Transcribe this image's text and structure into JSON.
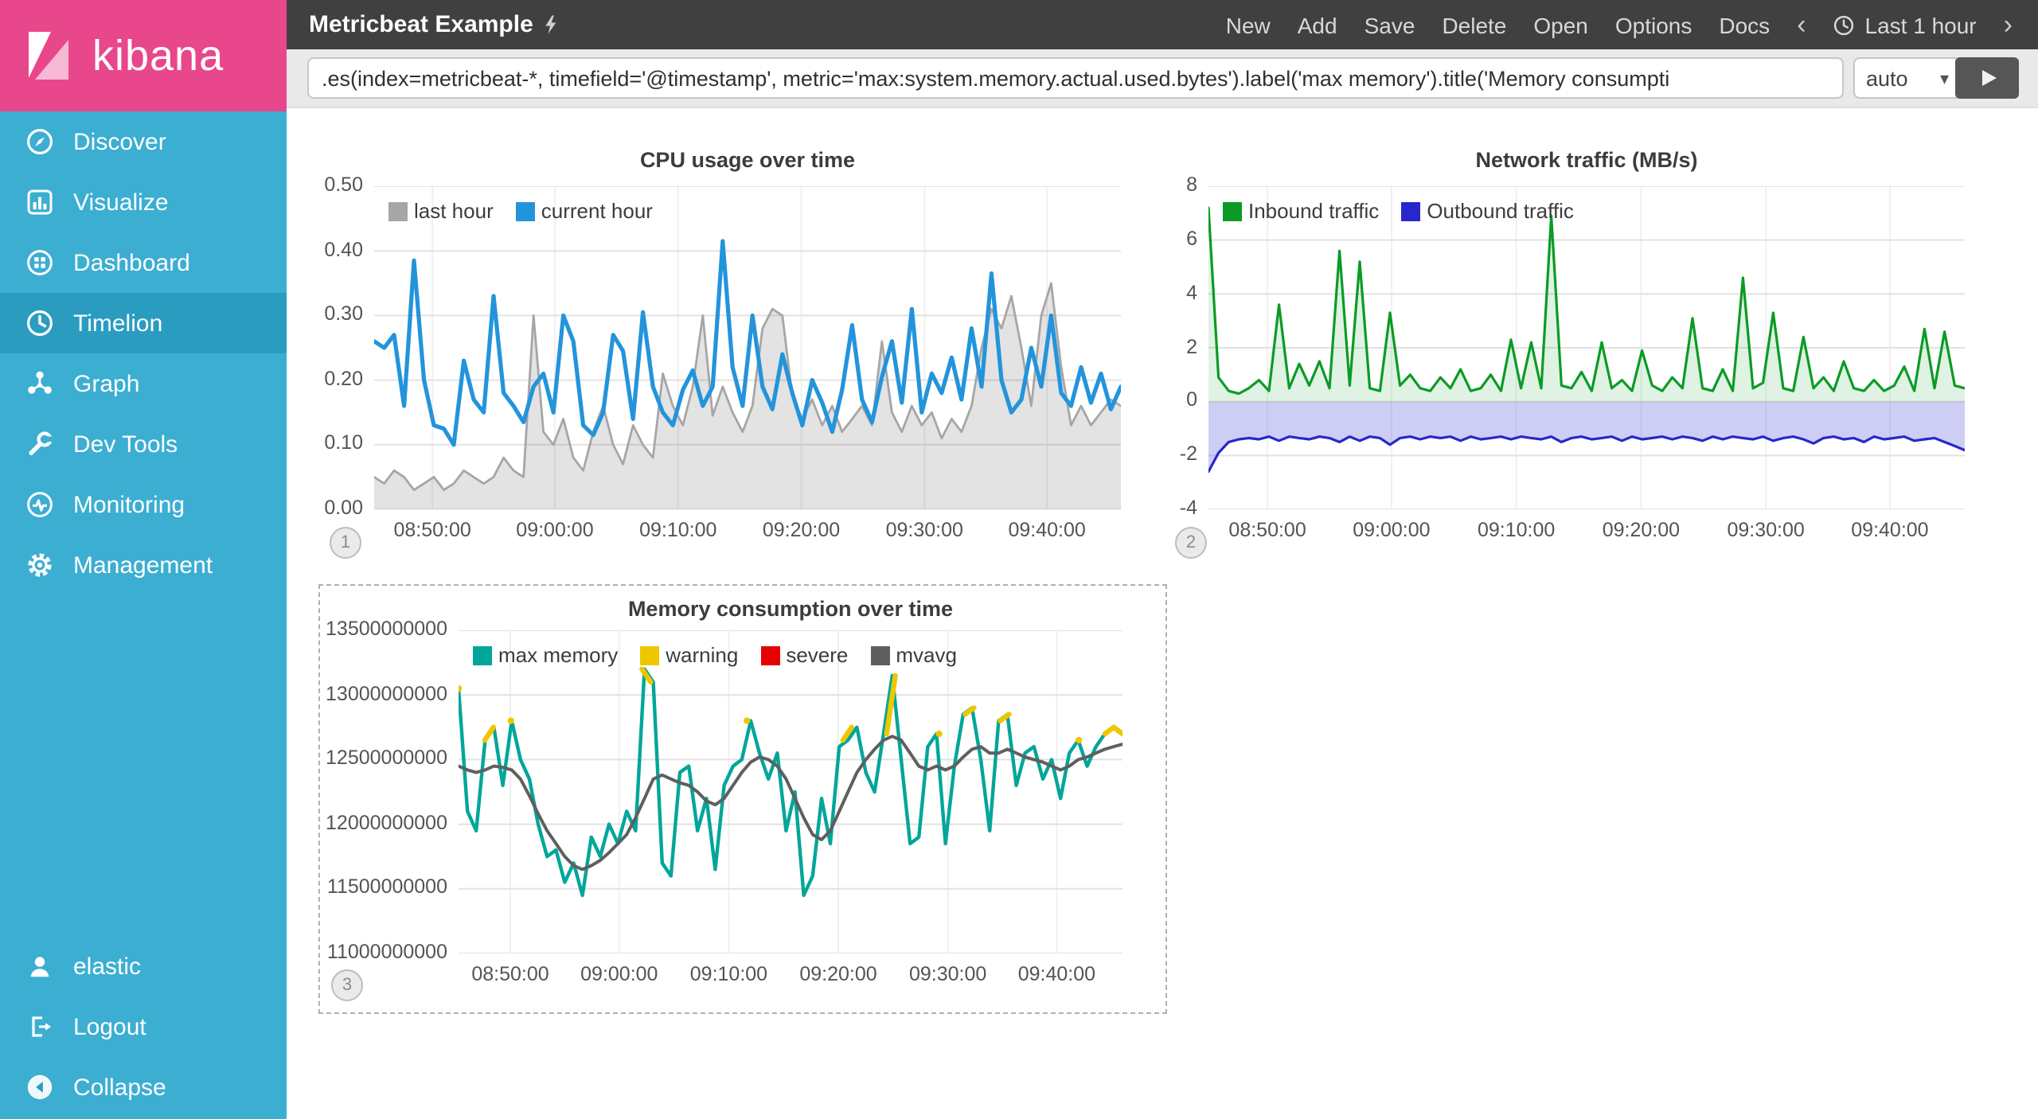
{
  "sidebar": {
    "logo_text": "kibana",
    "items": [
      {
        "label": "Discover",
        "icon": "compass-icon",
        "active": false
      },
      {
        "label": "Visualize",
        "icon": "bar-chart-icon",
        "active": false
      },
      {
        "label": "Dashboard",
        "icon": "dashboard-icon",
        "active": false
      },
      {
        "label": "Timelion",
        "icon": "clock-icon",
        "active": true
      },
      {
        "label": "Graph",
        "icon": "graph-icon",
        "active": false
      },
      {
        "label": "Dev Tools",
        "icon": "wrench-icon",
        "active": false
      },
      {
        "label": "Monitoring",
        "icon": "pulse-icon",
        "active": false
      },
      {
        "label": "Management",
        "icon": "gear-icon",
        "active": false
      }
    ],
    "bottom_items": [
      {
        "label": "elastic",
        "icon": "user-icon"
      },
      {
        "label": "Logout",
        "icon": "logout-icon"
      },
      {
        "label": "Collapse",
        "icon": "collapse-icon"
      }
    ]
  },
  "topbar": {
    "title": "Metricbeat Example",
    "title_icon": "lightning-bolt-icon",
    "menu": [
      "New",
      "Add",
      "Save",
      "Delete",
      "Open",
      "Options",
      "Docs"
    ],
    "prev_symbol": "‹",
    "next_symbol": "›",
    "time_label": "Last 1 hour"
  },
  "querybar": {
    "expression": ".es(index=metricbeat-*, timefield='@timestamp', metric='max:system.memory.actual.used.bytes').label('max memory').title('Memory consumpti",
    "interval": "auto",
    "caret_symbol": "▾"
  },
  "colors": {
    "brand_pink": "#e8478b",
    "sidebar_teal": "#3caed2",
    "sidebar_active": "#2a9cc0",
    "topbar_gray": "#404040",
    "cpu_last_hour": "#a6a6a6",
    "cpu_current_hour": "#2394dc",
    "inbound_green": "#0b9b25",
    "outbound_blue": "#2727cc",
    "max_memory_teal": "#00a69a",
    "warning_yellow": "#efc700",
    "severe_red": "#e60000",
    "mvavg_gray": "#5f5f5f"
  },
  "chart_data": [
    {
      "type": "line",
      "title": "CPU usage over time",
      "badge": "1",
      "selected": false,
      "x_start": "08:46:00",
      "x_end": "09:43:00",
      "ylim": [
        0,
        0.5
      ],
      "grid": true,
      "legend_position": "top-left-inside",
      "y_ticks": [
        {
          "v": 0,
          "label": "0.00"
        },
        {
          "v": 0.1,
          "label": "0.10"
        },
        {
          "v": 0.2,
          "label": "0.20"
        },
        {
          "v": 0.3,
          "label": "0.30"
        },
        {
          "v": 0.4,
          "label": "0.40"
        },
        {
          "v": 0.5,
          "label": "0.50"
        }
      ],
      "x_ticks": [
        {
          "pos": 0.078,
          "label": "08:50:00"
        },
        {
          "pos": 0.242,
          "label": "09:00:00"
        },
        {
          "pos": 0.407,
          "label": "09:10:00"
        },
        {
          "pos": 0.572,
          "label": "09:20:00"
        },
        {
          "pos": 0.737,
          "label": "09:30:00"
        },
        {
          "pos": 0.901,
          "label": "09:40:00"
        }
      ],
      "series": [
        {
          "name": "last hour",
          "color": "#a6a6a6",
          "width": 1.4,
          "fill": "rgba(0,0,0,0.11)",
          "fill_to": 0,
          "values": [
            0.05,
            0.04,
            0.06,
            0.05,
            0.03,
            0.04,
            0.05,
            0.03,
            0.04,
            0.06,
            0.05,
            0.04,
            0.05,
            0.08,
            0.06,
            0.05,
            0.3,
            0.12,
            0.1,
            0.14,
            0.08,
            0.06,
            0.12,
            0.16,
            0.1,
            0.07,
            0.13,
            0.1,
            0.08,
            0.21,
            0.16,
            0.13,
            0.19,
            0.3,
            0.145,
            0.19,
            0.15,
            0.12,
            0.16,
            0.28,
            0.31,
            0.3,
            0.175,
            0.14,
            0.17,
            0.13,
            0.16,
            0.12,
            0.14,
            0.16,
            0.13,
            0.26,
            0.15,
            0.12,
            0.16,
            0.13,
            0.15,
            0.11,
            0.14,
            0.12,
            0.16,
            0.25,
            0.31,
            0.28,
            0.33,
            0.25,
            0.16,
            0.3,
            0.35,
            0.22,
            0.13,
            0.16,
            0.13,
            0.15,
            0.17,
            0.16
          ]
        },
        {
          "name": "current hour",
          "color": "#2394dc",
          "width": 2.6,
          "values": [
            0.26,
            0.25,
            0.27,
            0.16,
            0.385,
            0.2,
            0.13,
            0.125,
            0.1,
            0.23,
            0.17,
            0.15,
            0.33,
            0.18,
            0.16,
            0.135,
            0.19,
            0.21,
            0.15,
            0.3,
            0.26,
            0.13,
            0.115,
            0.15,
            0.27,
            0.245,
            0.14,
            0.305,
            0.19,
            0.15,
            0.13,
            0.185,
            0.215,
            0.16,
            0.19,
            0.415,
            0.22,
            0.16,
            0.3,
            0.19,
            0.155,
            0.24,
            0.18,
            0.13,
            0.2,
            0.165,
            0.12,
            0.185,
            0.285,
            0.17,
            0.135,
            0.205,
            0.26,
            0.165,
            0.31,
            0.15,
            0.21,
            0.18,
            0.235,
            0.17,
            0.28,
            0.19,
            0.365,
            0.2,
            0.15,
            0.17,
            0.25,
            0.19,
            0.3,
            0.18,
            0.16,
            0.22,
            0.165,
            0.21,
            0.155,
            0.19
          ]
        }
      ]
    },
    {
      "type": "area",
      "title": "Network traffic (MB/s)",
      "badge": "2",
      "selected": false,
      "x_start": "08:46:00",
      "x_end": "09:43:00",
      "ylim": [
        -4,
        8
      ],
      "grid": true,
      "legend_position": "top-left-inside",
      "y_ticks": [
        {
          "v": -4,
          "label": "-4"
        },
        {
          "v": -2,
          "label": "-2"
        },
        {
          "v": 0,
          "label": "0"
        },
        {
          "v": 2,
          "label": "2"
        },
        {
          "v": 4,
          "label": "4"
        },
        {
          "v": 6,
          "label": "6"
        },
        {
          "v": 8,
          "label": "8"
        }
      ],
      "x_ticks": [
        {
          "pos": 0.078,
          "label": "08:50:00"
        },
        {
          "pos": 0.242,
          "label": "09:00:00"
        },
        {
          "pos": 0.407,
          "label": "09:10:00"
        },
        {
          "pos": 0.572,
          "label": "09:20:00"
        },
        {
          "pos": 0.737,
          "label": "09:30:00"
        },
        {
          "pos": 0.901,
          "label": "09:40:00"
        }
      ],
      "series": [
        {
          "name": "Inbound traffic",
          "color": "#0b9b25",
          "width": 1.6,
          "fill": "rgba(11,155,37,0.13)",
          "fill_to": 0,
          "values": [
            7.2,
            0.9,
            0.4,
            0.3,
            0.5,
            0.8,
            0.4,
            3.6,
            0.5,
            1.4,
            0.6,
            1.5,
            0.5,
            5.6,
            0.6,
            5.2,
            0.5,
            0.4,
            3.3,
            0.6,
            1.0,
            0.5,
            0.4,
            0.9,
            0.5,
            1.2,
            0.4,
            0.5,
            1.0,
            0.4,
            2.3,
            0.5,
            2.2,
            0.5,
            6.9,
            0.6,
            0.5,
            1.1,
            0.4,
            2.2,
            0.5,
            0.8,
            0.4,
            1.9,
            0.6,
            0.4,
            0.9,
            0.5,
            3.1,
            0.5,
            0.4,
            1.2,
            0.4,
            4.6,
            0.5,
            0.7,
            3.3,
            0.5,
            0.4,
            2.4,
            0.5,
            0.9,
            0.4,
            1.5,
            0.5,
            0.4,
            0.8,
            0.4,
            0.6,
            1.3,
            0.4,
            2.7,
            0.5,
            2.6,
            0.6,
            0.5
          ]
        },
        {
          "name": "Outbound traffic",
          "color": "#2727cc",
          "width": 1.6,
          "fill": "rgba(80,80,215,0.28)",
          "fill_to": 0,
          "values": [
            -2.6,
            -1.9,
            -1.5,
            -1.4,
            -1.35,
            -1.4,
            -1.3,
            -1.45,
            -1.3,
            -1.35,
            -1.4,
            -1.3,
            -1.35,
            -1.5,
            -1.3,
            -1.45,
            -1.3,
            -1.35,
            -1.6,
            -1.35,
            -1.3,
            -1.4,
            -1.3,
            -1.35,
            -1.3,
            -1.45,
            -1.3,
            -1.4,
            -1.35,
            -1.3,
            -1.4,
            -1.3,
            -1.35,
            -1.4,
            -1.3,
            -1.5,
            -1.35,
            -1.3,
            -1.4,
            -1.35,
            -1.3,
            -1.45,
            -1.3,
            -1.4,
            -1.35,
            -1.3,
            -1.4,
            -1.3,
            -1.35,
            -1.45,
            -1.3,
            -1.4,
            -1.3,
            -1.35,
            -1.4,
            -1.3,
            -1.45,
            -1.35,
            -1.3,
            -1.4,
            -1.55,
            -1.35,
            -1.3,
            -1.4,
            -1.35,
            -1.5,
            -1.3,
            -1.4,
            -1.35,
            -1.3,
            -1.45,
            -1.4,
            -1.35,
            -1.5,
            -1.65,
            -1.8
          ]
        }
      ]
    },
    {
      "type": "line",
      "title": "Memory consumption over time",
      "badge": "3",
      "selected": true,
      "x_start": "08:46:00",
      "x_end": "09:43:00",
      "y_unit_multiplier": 1000000000,
      "warning_threshold": 12.65,
      "ylim": [
        11,
        13.5
      ],
      "grid": true,
      "legend_position": "top-left-inside",
      "y_ticks": [
        {
          "v": 11,
          "label": "11000000000"
        },
        {
          "v": 11.5,
          "label": "11500000000"
        },
        {
          "v": 12,
          "label": "12000000000"
        },
        {
          "v": 12.5,
          "label": "12500000000"
        },
        {
          "v": 13,
          "label": "13000000000"
        },
        {
          "v": 13.5,
          "label": "13500000000"
        }
      ],
      "x_ticks": [
        {
          "pos": 0.078,
          "label": "08:50:00"
        },
        {
          "pos": 0.242,
          "label": "09:00:00"
        },
        {
          "pos": 0.407,
          "label": "09:10:00"
        },
        {
          "pos": 0.572,
          "label": "09:20:00"
        },
        {
          "pos": 0.737,
          "label": "09:30:00"
        },
        {
          "pos": 0.901,
          "label": "09:40:00"
        }
      ],
      "series": [
        {
          "name": "max memory",
          "color": "#00a69a",
          "width": 2.2,
          "values": [
            13.05,
            12.1,
            11.95,
            12.65,
            12.75,
            12.3,
            12.8,
            12.5,
            12.35,
            12.0,
            11.75,
            11.8,
            11.55,
            11.7,
            11.45,
            11.9,
            11.75,
            12.0,
            11.85,
            12.1,
            11.95,
            13.2,
            13.1,
            11.7,
            11.6,
            12.4,
            12.45,
            11.95,
            12.2,
            11.65,
            12.3,
            12.45,
            12.5,
            12.8,
            12.55,
            12.35,
            12.55,
            11.95,
            12.25,
            11.45,
            11.6,
            12.2,
            11.85,
            12.6,
            12.65,
            12.75,
            12.4,
            12.25,
            12.7,
            13.15,
            12.5,
            11.85,
            11.9,
            12.6,
            12.7,
            11.85,
            12.45,
            12.85,
            12.9,
            12.5,
            11.95,
            12.8,
            12.85,
            12.3,
            12.55,
            12.6,
            12.35,
            12.5,
            12.2,
            12.55,
            12.65,
            12.45,
            12.6,
            12.7,
            12.75,
            12.7
          ]
        },
        {
          "name": "warning",
          "color": "#efc700",
          "width": 3.2,
          "values": [
            13.05,
            null,
            null,
            12.65,
            12.75,
            null,
            12.8,
            null,
            null,
            null,
            null,
            null,
            null,
            null,
            null,
            null,
            null,
            null,
            null,
            null,
            null,
            13.2,
            13.1,
            null,
            null,
            null,
            null,
            null,
            null,
            null,
            null,
            null,
            null,
            12.8,
            null,
            null,
            null,
            null,
            null,
            null,
            null,
            null,
            null,
            null,
            12.65,
            12.75,
            null,
            null,
            null,
            12.7,
            13.15,
            null,
            null,
            null,
            null,
            12.7,
            null,
            null,
            12.85,
            12.9,
            null,
            null,
            12.8,
            12.85,
            null,
            null,
            null,
            null,
            null,
            null,
            null,
            12.65,
            null,
            null,
            12.7,
            12.75,
            12.7
          ]
        },
        {
          "name": "severe",
          "color": "#e60000",
          "width": 3.2,
          "values": []
        },
        {
          "name": "mvavg",
          "color": "#5f5f5f",
          "width": 2,
          "values": [
            12.45,
            12.42,
            12.4,
            12.42,
            12.45,
            12.44,
            12.42,
            12.35,
            12.22,
            12.08,
            11.95,
            11.85,
            11.75,
            11.68,
            11.65,
            11.68,
            11.72,
            11.78,
            11.85,
            11.92,
            12.05,
            12.2,
            12.35,
            12.38,
            12.35,
            12.32,
            12.3,
            12.25,
            12.18,
            12.15,
            12.2,
            12.3,
            12.4,
            12.48,
            12.52,
            12.5,
            12.45,
            12.35,
            12.2,
            12.05,
            11.92,
            11.88,
            11.95,
            12.1,
            12.25,
            12.4,
            12.5,
            12.58,
            12.65,
            12.68,
            12.65,
            12.55,
            12.45,
            12.42,
            12.45,
            12.42,
            12.45,
            12.52,
            12.58,
            12.6,
            12.55,
            12.55,
            12.58,
            12.55,
            12.52,
            12.5,
            12.48,
            12.45,
            12.42,
            12.45,
            12.5,
            12.52,
            12.55,
            12.58,
            12.6,
            12.62
          ]
        }
      ]
    }
  ]
}
